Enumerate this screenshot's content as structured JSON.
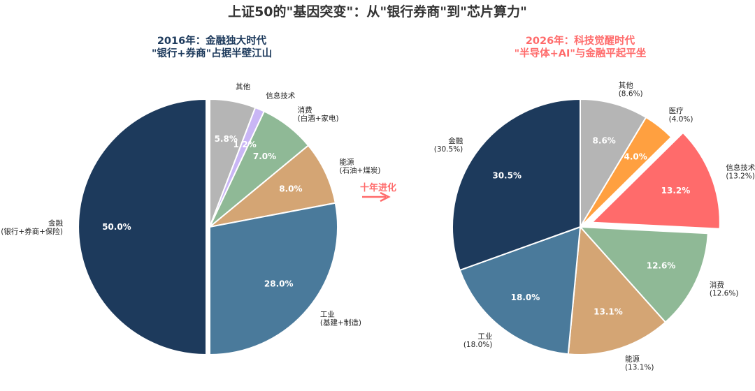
{
  "title": "上证50的\"基因突变\"：从\"银行券商\"到\"芯片算力\"",
  "arrow_text": "十年进化",
  "colors": {
    "left_subtitle": "#1d3a5c",
    "right_subtitle": "#ff6b6b",
    "arrow": "#ff6b6b"
  },
  "chart_data": [
    {
      "type": "pie",
      "subtitle_line1": "2016年：金融独大时代",
      "subtitle_line2": "\"银行+券商\"占据半壁江山",
      "counterclock": false,
      "slices": [
        {
          "label": [
            "其他"
          ],
          "value": 5.8,
          "color": "#b5b5b5"
        },
        {
          "label": [
            "信息技术"
          ],
          "value": 1.2,
          "color": "#c9b6f5"
        },
        {
          "label": [
            "消费",
            "(白酒+家电)"
          ],
          "value": 7.0,
          "color": "#8fb996"
        },
        {
          "label": [
            "能源",
            "(石油+煤炭)"
          ],
          "value": 8.0,
          "color": "#d4a574"
        },
        {
          "label": [
            "工业",
            "(基建+制造)"
          ],
          "value": 28.0,
          "color": "#4a7a9b"
        },
        {
          "label": [
            "金融",
            "(银行+券商+保险)"
          ],
          "value": 50.0,
          "color": "#1d3a5c",
          "explode": true
        }
      ]
    },
    {
      "type": "pie",
      "subtitle_line1": "2026年：科技觉醒时代",
      "subtitle_line2": "\"半导体+AI\"与金融平起平坐",
      "counterclock": false,
      "slices": [
        {
          "label": [
            "其他",
            "(8.6%)"
          ],
          "value": 8.6,
          "color": "#b5b5b5"
        },
        {
          "label": [
            "医疗",
            "(4.0%)"
          ],
          "value": 4.0,
          "color": "#ffa040"
        },
        {
          "label": [
            "信息技术",
            "(13.2%)"
          ],
          "value": 13.2,
          "color": "#ff6b6b",
          "explode": true
        },
        {
          "label": [
            "消费",
            "(12.6%)"
          ],
          "value": 12.6,
          "color": "#8fb996"
        },
        {
          "label": [
            "能源",
            "(13.1%)"
          ],
          "value": 13.1,
          "color": "#d4a574"
        },
        {
          "label": [
            "工业",
            "(18.0%)"
          ],
          "value": 18.0,
          "color": "#4a7a9b"
        },
        {
          "label": [
            "金融",
            "(30.5%)"
          ],
          "value": 30.5,
          "color": "#1d3a5c"
        }
      ]
    }
  ]
}
